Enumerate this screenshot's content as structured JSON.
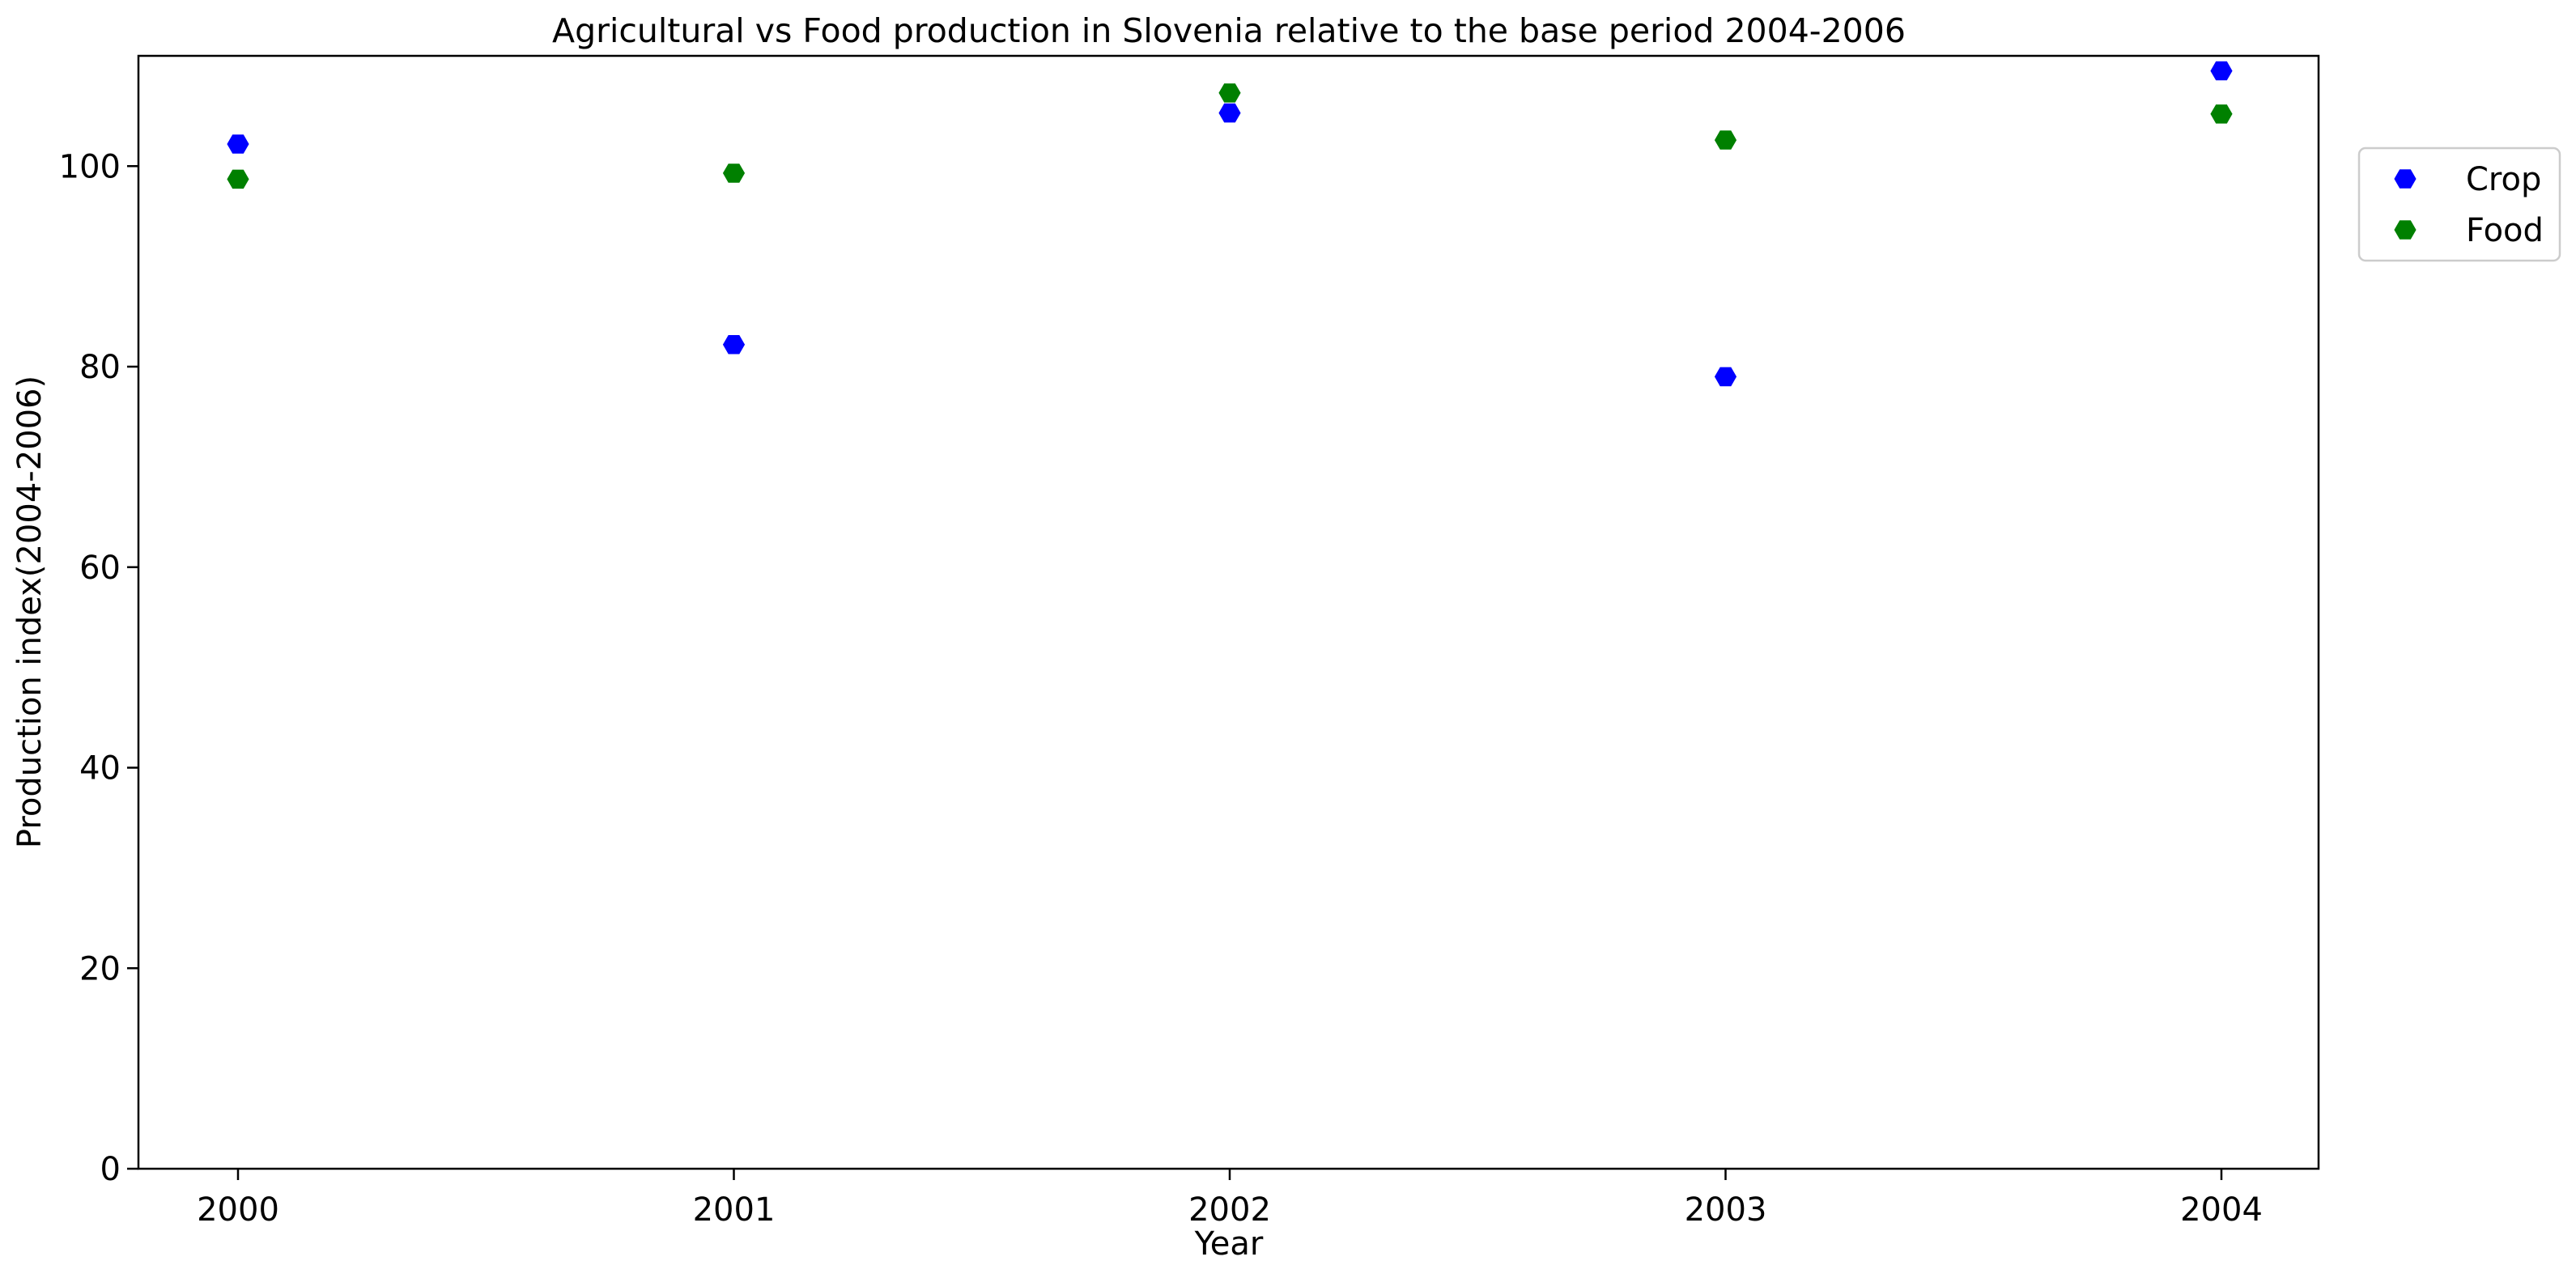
{
  "chart_data": {
    "type": "scatter",
    "title": "Agricultural vs Food production in Slovenia relative to the base period 2004-2006",
    "xlabel": "Year",
    "ylabel": "Production index(2004-2006)",
    "x": [
      "2000",
      "2001",
      "2002",
      "2003",
      "2004"
    ],
    "yticks": [
      0,
      20,
      40,
      60,
      80,
      100
    ],
    "ylim": [
      0,
      111
    ],
    "grid": false,
    "legend_position": "outside-right-top",
    "marker": "hexagon",
    "series": [
      {
        "name": "Crop",
        "color": "#0000ff",
        "values": [
          102.2,
          82.2,
          105.3,
          79.0,
          109.5
        ]
      },
      {
        "name": "Food",
        "color": "#008000",
        "values": [
          98.7,
          99.3,
          107.3,
          102.6,
          105.2
        ]
      }
    ]
  }
}
